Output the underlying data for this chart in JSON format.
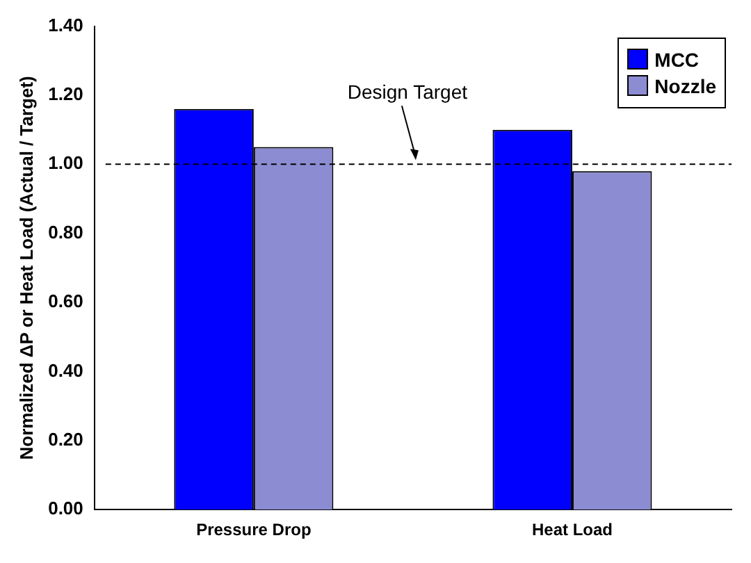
{
  "chart_data": {
    "type": "bar",
    "ylabel": "Normalized ΔP or Heat Load (Actual / Target)",
    "categories": [
      "Pressure Drop",
      "Heat Load"
    ],
    "series": [
      {
        "name": "MCC",
        "color": "#0000ff",
        "values": [
          1.16,
          1.1
        ]
      },
      {
        "name": "Nozzle",
        "color": "#8c8cd2",
        "values": [
          1.05,
          0.98
        ]
      }
    ],
    "ylim": [
      0,
      1.4
    ],
    "yticks": [
      {
        "value": 0,
        "label": "0.00"
      },
      {
        "value": 0.2,
        "label": "0.20"
      },
      {
        "value": 0.4,
        "label": "0.40"
      },
      {
        "value": 0.6,
        "label": "0.60"
      },
      {
        "value": 0.8,
        "label": "0.80"
      },
      {
        "value": 1,
        "label": "1.00"
      },
      {
        "value": 1.2,
        "label": "1.20"
      },
      {
        "value": 1.4,
        "label": "1.40"
      }
    ],
    "ref_lines": [
      {
        "axis": "y",
        "value": 1,
        "label": "Design Target",
        "line_style": "dashed",
        "color": "#000000"
      }
    ],
    "grid": false,
    "legend": "top right"
  }
}
